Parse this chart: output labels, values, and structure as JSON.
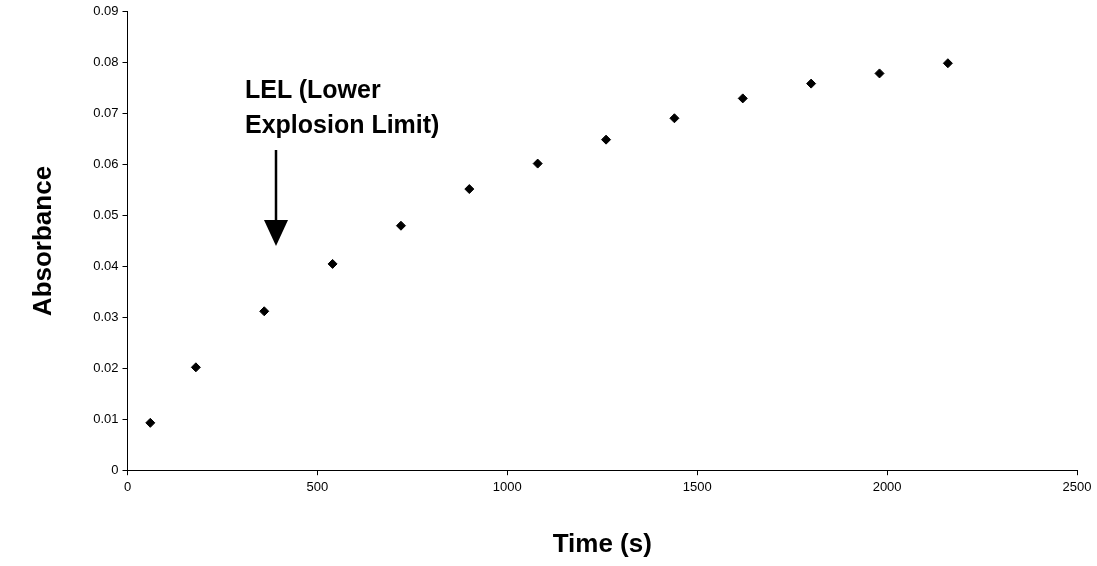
{
  "chart_data": {
    "type": "scatter",
    "xlabel": "Time (s)",
    "ylabel": "Absorbance",
    "x": [
      60,
      180,
      360,
      540,
      720,
      900,
      1080,
      1260,
      1440,
      1620,
      1800,
      1980,
      2160
    ],
    "values": [
      0.0093,
      0.0202,
      0.0312,
      0.0405,
      0.048,
      0.0552,
      0.0602,
      0.0649,
      0.0691,
      0.073,
      0.0759,
      0.0779,
      0.0799
    ],
    "color": "#000000",
    "marker": "diamond",
    "xlim": [
      0,
      2500
    ],
    "xticks": [
      0,
      500,
      1000,
      1500,
      2000,
      2500
    ],
    "ylim": [
      0,
      0.09
    ],
    "yticks": [
      0,
      0.01,
      0.02,
      0.03,
      0.04,
      0.05,
      0.06,
      0.07,
      0.08,
      0.09
    ],
    "grid": false,
    "legend": false,
    "annotations": [
      "LEL (Lower Explosion Limit)"
    ]
  }
}
